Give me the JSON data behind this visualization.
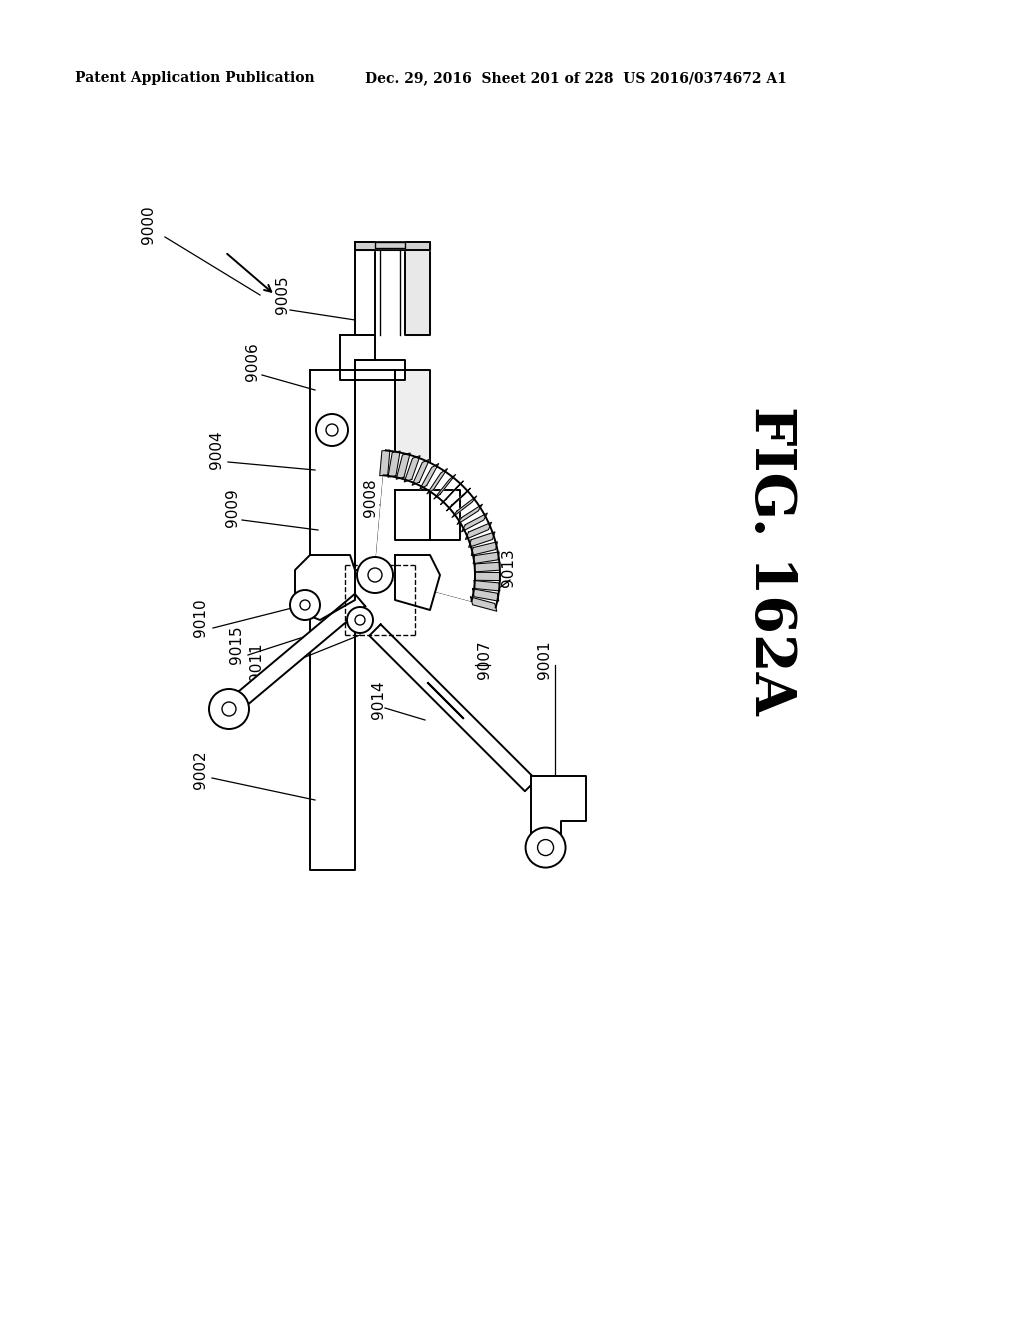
{
  "header_left": "Patent Application Publication",
  "header_right": "Dec. 29, 2016  Sheet 201 of 228  US 2016/0374672 A1",
  "fig_label": "FIG. 162A",
  "background_color": "#ffffff",
  "text_color": "#000000"
}
